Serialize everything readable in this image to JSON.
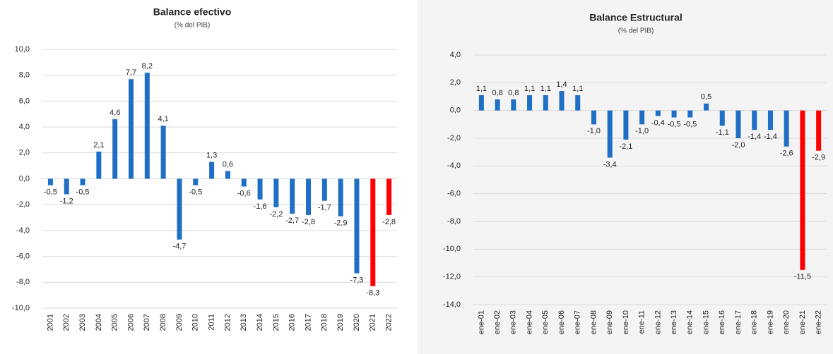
{
  "chart_data": [
    {
      "type": "bar",
      "title": "Balance efectivo",
      "subtitle": "(% del PIB)",
      "categories": [
        "2001",
        "2002",
        "2003",
        "2004",
        "2005",
        "2006",
        "2007",
        "2008",
        "2009",
        "2010",
        "2011",
        "2012",
        "2013",
        "2014",
        "2015",
        "2016",
        "2017",
        "2018",
        "2019",
        "2020",
        "2021",
        "2022"
      ],
      "values": [
        -0.5,
        -1.2,
        -0.5,
        2.1,
        4.6,
        7.7,
        8.2,
        4.1,
        -4.7,
        -0.5,
        1.3,
        0.6,
        -0.6,
        -1.6,
        -2.2,
        -2.7,
        -2.8,
        -1.7,
        -2.9,
        -7.3,
        -8.3,
        -2.8
      ],
      "value_labels": [
        "-0,5",
        "-1,2",
        "-0,5",
        "2,1",
        "4,6",
        "7,7",
        "8,2",
        "4,1",
        "-4,7",
        "-0,5",
        "1,3",
        "0,6",
        "-0,6",
        "-1,6",
        "-2,2",
        "-2,7",
        "-2,8",
        "-1,7",
        "-2,9",
        "-7,3",
        "-8,3",
        "-2,8"
      ],
      "colors": [
        "#1f6fc5",
        "#1f6fc5",
        "#1f6fc5",
        "#1f6fc5",
        "#1f6fc5",
        "#1f6fc5",
        "#1f6fc5",
        "#1f6fc5",
        "#1f6fc5",
        "#1f6fc5",
        "#1f6fc5",
        "#1f6fc5",
        "#1f6fc5",
        "#1f6fc5",
        "#1f6fc5",
        "#1f6fc5",
        "#1f6fc5",
        "#1f6fc5",
        "#1f6fc5",
        "#1f6fc5",
        "#ff0000",
        "#ff0000"
      ],
      "ylim": [
        -10,
        10
      ],
      "yticks": [
        {
          "value": -10,
          "label": "-10,0"
        },
        {
          "value": -8,
          "label": "-8,0"
        },
        {
          "value": -6,
          "label": "-6,0"
        },
        {
          "value": -4,
          "label": "-4,0"
        },
        {
          "value": -2,
          "label": "-2,0"
        },
        {
          "value": 0,
          "label": "0,0"
        },
        {
          "value": 2,
          "label": "2,0"
        },
        {
          "value": 4,
          "label": "4,0"
        },
        {
          "value": 6,
          "label": "6,0"
        },
        {
          "value": 8,
          "label": "8,0"
        },
        {
          "value": 10,
          "label": "10,0"
        }
      ],
      "grid": true
    },
    {
      "type": "bar",
      "title": "Balance Estructural",
      "subtitle": "(% del PIB)",
      "categories": [
        "ene-01",
        "ene-02",
        "ene-03",
        "ene-04",
        "ene-05",
        "ene-06",
        "ene-07",
        "ene-08",
        "ene-09",
        "ene-10",
        "ene-11",
        "ene-12",
        "ene-13",
        "ene-14",
        "ene-15",
        "ene-16",
        "ene-17",
        "ene-18",
        "ene-19",
        "ene-20",
        "ene-21",
        "ene-22"
      ],
      "values": [
        1.1,
        0.8,
        0.8,
        1.1,
        1.1,
        1.4,
        1.1,
        -1.0,
        -3.4,
        -2.1,
        -1.0,
        -0.4,
        -0.5,
        -0.5,
        0.5,
        -1.1,
        -2.0,
        -1.4,
        -1.4,
        -2.6,
        -11.5,
        -2.9
      ],
      "value_labels": [
        "1,1",
        "0,8",
        "0,8",
        "1,1",
        "1,1",
        "1,4",
        "1,1",
        "-1,0",
        "-3,4",
        "-2,1",
        "-1,0",
        "-0,4",
        "-0,5",
        "-0,5",
        "0,5",
        "-1,1",
        "-2,0",
        "-1,4",
        "-1,4",
        "-2,6",
        "-11,5",
        "-2,9"
      ],
      "colors": [
        "#1f6fc5",
        "#1f6fc5",
        "#1f6fc5",
        "#1f6fc5",
        "#1f6fc5",
        "#1f6fc5",
        "#1f6fc5",
        "#1f6fc5",
        "#1f6fc5",
        "#1f6fc5",
        "#1f6fc5",
        "#1f6fc5",
        "#1f6fc5",
        "#1f6fc5",
        "#1f6fc5",
        "#1f6fc5",
        "#1f6fc5",
        "#1f6fc5",
        "#1f6fc5",
        "#1f6fc5",
        "#ff0000",
        "#ff0000"
      ],
      "ylim": [
        -14,
        4
      ],
      "yticks": [
        {
          "value": -14,
          "label": "-14,0"
        },
        {
          "value": -12,
          "label": "-12,0"
        },
        {
          "value": -10,
          "label": "-10,0"
        },
        {
          "value": -8,
          "label": "-8,0"
        },
        {
          "value": -6,
          "label": "-6,0"
        },
        {
          "value": -4,
          "label": "-4,0"
        },
        {
          "value": -2,
          "label": "-2,0"
        },
        {
          "value": 0,
          "label": "0,0"
        },
        {
          "value": 2,
          "label": "2,0"
        },
        {
          "value": 4,
          "label": "4,0"
        }
      ],
      "grid": true
    }
  ]
}
